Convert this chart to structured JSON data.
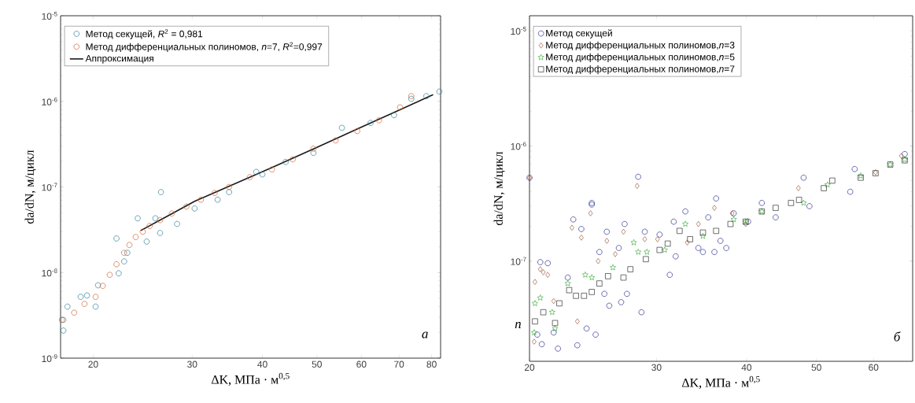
{
  "chart_data": [
    {
      "type": "scatter",
      "xlabel": "ΔK, МПа · м$^{0,5}$",
      "ylabel": "da/dN, м/цикл",
      "log": "xy",
      "grid": false,
      "legend": "top left",
      "xlim": [
        17.5,
        83
      ],
      "ylim": [
        1e-09,
        1e-05
      ],
      "xticks": [
        20,
        30,
        40,
        50,
        60,
        70,
        80
      ],
      "yticks": [
        {
          "value": 1e-09,
          "label": "10$^{-9}$"
        },
        {
          "value": 1e-08,
          "label": "10$^{-8}$"
        },
        {
          "value": 1e-07,
          "label": "10$^{-7}$"
        },
        {
          "value": 1e-06,
          "label": "10$^{-6}$"
        },
        {
          "value": 1e-05,
          "label": "10$^{-5}$"
        }
      ],
      "annotations": [
        "а"
      ],
      "series": [
        {
          "name": "Метод секущей, *R*$^{2}$ = 0,981",
          "marker": "circle",
          "color": "#2e7d99",
          "x": [
            17.7,
            18.0,
            17.6,
            19.0,
            19.5,
            20.2,
            20.4,
            22.2,
            22.0,
            23.0,
            22.7,
            24.0,
            24.9,
            26.3,
            28.2,
            25.8,
            30.3,
            33.3,
            26.4,
            34.9,
            39.0,
            40.0,
            44.0,
            49.3,
            55.4,
            62.3,
            68.6,
            73.6,
            78.3,
            82.6
          ],
          "values": [
            2.1e-09,
            4e-09,
            2.8e-09,
            5.2e-09,
            5.4e-09,
            4e-09,
            7.1e-09,
            9.8e-09,
            2.5e-08,
            1.7e-08,
            1.35e-08,
            4.3e-08,
            2.3e-08,
            2.9e-08,
            3.7e-08,
            4.3e-08,
            5.6e-08,
            7.1e-08,
            8.7e-08,
            8.7e-08,
            1.5e-07,
            1.4e-07,
            1.96e-07,
            2.5e-07,
            4.9e-07,
            5.6e-07,
            6.9e-07,
            1.07e-06,
            1.15e-06,
            1.3e-06
          ]
        },
        {
          "name": "Метод дифференциальных полиномов, *n*=7, *R*$^{2}$=0,997",
          "marker": "circle",
          "color": "#d2602e",
          "x": [
            17.7,
            18.5,
            19.3,
            20.2,
            20.8,
            21.4,
            22.0,
            22.7,
            23.2,
            23.8,
            24.5,
            25.2,
            26.3,
            27.6,
            29.3,
            31.1,
            32.9,
            34.9,
            38.0,
            41.6,
            45.3,
            49.3,
            54.0,
            59.0,
            64.5,
            70.3,
            73.6
          ],
          "values": [
            2.8e-09,
            3.4e-09,
            4.3e-09,
            5.2e-09,
            7e-09,
            9.4e-09,
            1.25e-08,
            1.7e-08,
            2.1e-08,
            2.6e-08,
            3e-08,
            3.5e-08,
            4.1e-08,
            4.9e-08,
            5.9e-08,
            7.1e-08,
            8.5e-08,
            1e-07,
            1.3e-07,
            1.6e-07,
            2.1e-07,
            2.8e-07,
            3.5e-07,
            4.5e-07,
            6e-07,
            8.5e-07,
            1.15e-06
          ]
        },
        {
          "name": "Аппроксимация",
          "type": "line",
          "marker": "none",
          "color": "#1a1a1a",
          "x": [
            24.3,
            27.0,
            30.3,
            41.7,
            50.0,
            60.0,
            70.0,
            80.5
          ],
          "values": [
            3.1e-08,
            4.5e-08,
            6.8e-08,
            1.7e-07,
            2.9e-07,
            5e-07,
            7.9e-07,
            1.2e-06
          ]
        }
      ]
    },
    {
      "type": "scatter",
      "xlabel": "ΔK, МПа · м$^{0,5}$",
      "ylabel": "da/dN, м/цикл",
      "log": "xy",
      "grid": false,
      "legend": "top left",
      "xlim": [
        20,
        68
      ],
      "ylim": [
        1.35e-08,
        1.35e-05
      ],
      "xticks": [
        20,
        30,
        40,
        50,
        60
      ],
      "yticks": [
        {
          "value": 1e-07,
          "label": "10$^{-7}$"
        },
        {
          "value": 1e-06,
          "label": "10$^{-6}$"
        },
        {
          "value": 1e-05,
          "label": "10$^{-5}$"
        }
      ],
      "annotations": [
        "б",
        "n"
      ],
      "series": [
        {
          "name": "Метод секущей",
          "marker": "circle",
          "color": "#2b2f8f",
          "x": [
            20.0,
            28.3,
            24.4,
            36.3,
            48.0,
            55.7,
            56.5,
            66.3,
            20.7,
            21.2,
            20.5,
            20.8,
            21.6,
            21.9,
            22.6,
            23.0,
            23.3,
            23.6,
            24.0,
            24.4,
            24.7,
            25.0,
            25.4,
            25.6,
            25.8,
            26.6,
            26.8,
            27.1,
            27.3,
            28.6,
            28.9,
            30.3,
            31.3,
            31.9,
            31.7,
            32.9,
            34.3,
            34.8,
            35.4,
            36.1,
            36.8,
            37.5,
            38.4,
            40.2,
            42.0,
            43.9,
            48.9
          ],
          "values": [
            5.3e-07,
            5.4e-07,
            3.2e-07,
            3.5e-07,
            5.3e-07,
            4e-07,
            6.3e-07,
            8.5e-07,
            9.8e-08,
            9.6e-08,
            2.3e-08,
            1.9e-08,
            2.4e-08,
            1.74e-08,
            7.2e-08,
            2.3e-07,
            1.86e-08,
            1.9e-07,
            2.6e-08,
            3.1e-07,
            2.3e-08,
            1.2e-07,
            5.2e-08,
            1.8e-07,
            4.1e-08,
            1.3e-07,
            4.4e-08,
            2.1e-07,
            5.2e-08,
            3.6e-08,
            1.8e-07,
            1.7e-07,
            7.6e-08,
            1.1e-07,
            2.2e-07,
            2.7e-07,
            1.3e-07,
            1.2e-07,
            2.4e-07,
            1.2e-07,
            1.5e-07,
            1.3e-07,
            2.6e-07,
            2.2e-07,
            3.2e-07,
            2.4e-07,
            3e-07
          ]
        },
        {
          "name": "Метод дифференциальных полиномов,*n*=3",
          "marker": "diamond",
          "color": "#9c5a3c",
          "x": [
            20.0,
            28.2,
            47.2,
            20.3,
            20.35,
            20.7,
            20.9,
            21.2,
            21.6,
            23.3,
            22.9,
            23.6,
            24.3,
            24.9,
            25.6,
            26.3,
            27.0,
            28.9,
            30.1,
            33.1,
            34.3,
            36.1,
            38.2,
            39.9,
            60.4,
            65.6
          ],
          "values": [
            5.3e-07,
            4.5e-07,
            4.3e-07,
            2e-08,
            6.6e-08,
            8.5e-08,
            8e-08,
            7.6e-08,
            4.5e-08,
            3e-08,
            1.95e-07,
            1.6e-07,
            2.6e-07,
            1e-07,
            1.5e-07,
            1.15e-07,
            1.8e-07,
            1.55e-07,
            1.55e-07,
            1.45e-07,
            2.1e-07,
            2.9e-07,
            2.6e-07,
            2.1e-07,
            5.9e-07,
            8.2e-07
          ]
        },
        {
          "name": "Метод дифференциальных полиномов,*n*=5",
          "marker": "star",
          "color": "#3fae3f",
          "x": [
            20.3,
            20.35,
            20.7,
            21.5,
            21.7,
            22.6,
            23.9,
            24.4,
            26.1,
            27.9,
            28.3,
            29.1,
            30.8,
            32.9,
            34.8,
            38.4,
            39.9,
            42.0,
            48.0,
            51.8,
            57.6,
            63.3,
            66.3
          ],
          "values": [
            2.4e-08,
            4.3e-08,
            4.8e-08,
            3.6e-08,
            2.6e-08,
            6.4e-08,
            7.6e-08,
            7.2e-08,
            8.8e-08,
            1.45e-07,
            1.2e-07,
            1.2e-07,
            1.25e-07,
            2.1e-07,
            1.65e-07,
            2.3e-07,
            2.2e-07,
            2.7e-07,
            3.2e-07,
            4.6e-07,
            5.5e-07,
            6.9e-07,
            7.6e-07
          ]
        },
        {
          "name": "Метод дифференциальных полиномов,*n*=7",
          "marker": "square",
          "color": "#333333",
          "x": [
            20.35,
            20.9,
            21.7,
            22.0,
            22.7,
            23.2,
            23.8,
            24.4,
            25.0,
            25.7,
            27.0,
            27.6,
            29.0,
            30.3,
            31.1,
            32.3,
            33.4,
            34.8,
            36.3,
            38.0,
            39.9,
            42.0,
            43.9,
            46.1,
            47.3,
            51.2,
            52.6,
            57.6,
            60.4,
            63.3,
            66.3
          ],
          "values": [
            3e-08,
            3.6e-08,
            2.9e-08,
            4.3e-08,
            5.6e-08,
            5e-08,
            5e-08,
            5.4e-08,
            6.4e-08,
            7.4e-08,
            7.2e-08,
            8.5e-08,
            1.04e-07,
            1.25e-07,
            1.42e-07,
            1.83e-07,
            1.55e-07,
            1.77e-07,
            1.83e-07,
            2.1e-07,
            2.2e-07,
            2.7e-07,
            2.9e-07,
            3.2e-07,
            3.4e-07,
            4.3e-07,
            5e-07,
            5.3e-07,
            5.8e-07,
            6.9e-07,
            7.5e-07
          ]
        }
      ]
    }
  ]
}
